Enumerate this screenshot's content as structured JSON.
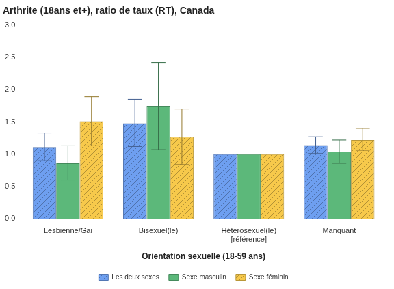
{
  "chart_data": {
    "type": "bar",
    "title": "Arthrite (18ans et+), ratio de taux (RT), Canada",
    "x_label": "Orientation sexuelle (18-59 ans)",
    "categories": [
      "Lesbienne/Gai",
      "Bisexuel(le)",
      "Hétérosexuel(le)\n[référence]",
      "Manquant"
    ],
    "series": [
      {
        "name": "Les deux sexes",
        "color": "#6e9ff0",
        "values": [
          1.11,
          1.48,
          1.0,
          1.14
        ],
        "error_low": [
          0.9,
          1.12,
          null,
          1.01
        ],
        "error_high": [
          1.33,
          1.85,
          null,
          1.27
        ]
      },
      {
        "name": "Sexe masculin",
        "color": "#5cb87a",
        "values": [
          0.86,
          1.75,
          1.0,
          1.04
        ],
        "error_low": [
          0.6,
          1.07,
          null,
          0.86
        ],
        "error_high": [
          1.13,
          2.42,
          null,
          1.22
        ]
      },
      {
        "name": "Sexe féminin",
        "color": "#f7c94b",
        "values": [
          1.51,
          1.27,
          1.0,
          1.22
        ],
        "error_low": [
          1.13,
          0.84,
          null,
          1.06
        ],
        "error_high": [
          1.89,
          1.7,
          null,
          1.4
        ]
      }
    ],
    "ylim": [
      0,
      3
    ],
    "yticks": [
      {
        "value": 0,
        "label": "0,0"
      },
      {
        "value": 0.5,
        "label": "0,5"
      },
      {
        "value": 1,
        "label": "1,0"
      },
      {
        "value": 1.5,
        "label": "1,5"
      },
      {
        "value": 2,
        "label": "2,0"
      },
      {
        "value": 2.5,
        "label": "2,5"
      },
      {
        "value": 3,
        "label": "3,0"
      }
    ],
    "grid": false,
    "legend": "bottom"
  }
}
